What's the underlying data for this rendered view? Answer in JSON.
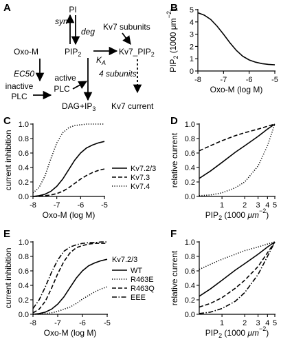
{
  "panel_labels": {
    "A": "A",
    "B": "B",
    "C": "C",
    "D": "D",
    "E": "E",
    "F": "F"
  },
  "diagram": {
    "pi": "PI",
    "syn": "syn",
    "deg": "deg",
    "pip2": "PIP",
    "pip2_sub": "2",
    "oxo_m": "Oxo-M",
    "ec50": "EC50",
    "inactive_1": "inactive",
    "inactive_2": "PLC",
    "active_1": "active",
    "active_2": "PLC",
    "dag_ip3": "DAG+IP",
    "dag_ip3_sub": "3",
    "kv7_subunits": "Kv7 subunits",
    "ka": "K",
    "ka_sub": "A",
    "kv7_pip2": "Kv7_PIP",
    "kv7_pip2_sub": "2",
    "four_subunits": "4 subunits",
    "kv7_current": "Kv7 current"
  },
  "chart_data": [
    {
      "panel": "B",
      "type": "line",
      "xlabel": "Oxo-M (log M)",
      "ylabel": "PIP2 (1000 μm−2)",
      "ylabel_parts": [
        "PIP",
        "2",
        " (1000 μm",
        "−2",
        ")"
      ],
      "xlim": [
        -8,
        -5
      ],
      "ylim": [
        0,
        5
      ],
      "x_ticks": [
        -8,
        -7,
        -6,
        -5
      ],
      "x_tick_labels": [
        "-8",
        "-7",
        "-6",
        "-5"
      ],
      "y_ticks": [
        0,
        1,
        2,
        3,
        4,
        5
      ],
      "y_tick_labels": [
        "0",
        "1",
        "2",
        "3",
        "4",
        "5"
      ],
      "series": [
        {
          "style": "solid",
          "x": [
            -8,
            -7.75,
            -7.5,
            -7.25,
            -7,
            -6.75,
            -6.5,
            -6.25,
            -6,
            -5.75,
            -5.5,
            -5.25,
            -5
          ],
          "y": [
            4.75,
            4.55,
            4.2,
            3.65,
            3.0,
            2.3,
            1.68,
            1.2,
            0.9,
            0.72,
            0.6,
            0.54,
            0.5
          ]
        }
      ]
    },
    {
      "panel": "C",
      "type": "line",
      "xlabel": "Oxo-M (log M)",
      "ylabel": "current inhibition",
      "xlim": [
        -8,
        -5
      ],
      "ylim": [
        0,
        1
      ],
      "x_ticks": [
        -8,
        -7,
        -6,
        -5
      ],
      "x_tick_labels": [
        "-8",
        "-7",
        "-6",
        "-5"
      ],
      "y_ticks": [
        0,
        0.2,
        0.4,
        0.6,
        0.8,
        1.0
      ],
      "y_tick_labels": [
        "0.0",
        "0.2",
        "0.4",
        "0.6",
        "0.8",
        "1.0"
      ],
      "series": [
        {
          "name": "Kv7.2/3",
          "style": "solid",
          "x": [
            -8,
            -7.75,
            -7.5,
            -7.25,
            -7,
            -6.75,
            -6.5,
            -6.25,
            -6,
            -5.75,
            -5.5,
            -5.25,
            -5
          ],
          "y": [
            0.0,
            0.01,
            0.03,
            0.07,
            0.14,
            0.24,
            0.37,
            0.5,
            0.6,
            0.67,
            0.71,
            0.74,
            0.76
          ]
        },
        {
          "name": "Kv7.3",
          "style": "dashed",
          "x": [
            -8,
            -7.75,
            -7.5,
            -7.25,
            -7,
            -6.75,
            -6.5,
            -6.25,
            -6,
            -5.75,
            -5.5,
            -5.25,
            -5
          ],
          "y": [
            0.0,
            0.0,
            0.01,
            0.02,
            0.04,
            0.07,
            0.12,
            0.18,
            0.24,
            0.29,
            0.33,
            0.36,
            0.38
          ]
        },
        {
          "name": "Kv7.4",
          "style": "dotted",
          "x": [
            -8,
            -7.75,
            -7.5,
            -7.25,
            -7,
            -6.75,
            -6.5,
            -6.25,
            -6,
            -5.75,
            -5.5,
            -5.25,
            -5
          ],
          "y": [
            0.05,
            0.12,
            0.28,
            0.52,
            0.74,
            0.88,
            0.95,
            0.98,
            0.99,
            1.0,
            1.0,
            1.0,
            1.0
          ]
        }
      ]
    },
    {
      "panel": "D",
      "type": "line",
      "xlabel": "PIP2 (1000 μm−2)",
      "xlabel_parts": [
        "PIP",
        "2",
        " (1000 ",
        "μm",
        "−2",
        ")"
      ],
      "ylabel": "relative current",
      "xscale": "log",
      "xlim": [
        0.5,
        5
      ],
      "ylim": [
        0,
        1
      ],
      "x_ticks": [
        1,
        2,
        3,
        4,
        5
      ],
      "x_tick_labels": [
        "1",
        "2",
        "3",
        "4",
        "5"
      ],
      "y_ticks": [
        0,
        0.2,
        0.4,
        0.6,
        0.8,
        1.0
      ],
      "y_tick_labels": [
        "0.0",
        "0.2",
        "0.4",
        "0.6",
        "0.8",
        "1.0"
      ],
      "series": [
        {
          "name": "Kv7.2/3",
          "style": "solid",
          "x": [
            0.5,
            0.7,
            1,
            1.5,
            2,
            3,
            4,
            5
          ],
          "y": [
            0.25,
            0.35,
            0.47,
            0.61,
            0.7,
            0.83,
            0.93,
            1.0
          ]
        },
        {
          "name": "Kv7.3",
          "style": "dashed",
          "x": [
            0.5,
            0.7,
            1,
            1.5,
            2,
            3,
            4,
            5
          ],
          "y": [
            0.63,
            0.7,
            0.77,
            0.84,
            0.88,
            0.93,
            0.97,
            1.0
          ]
        },
        {
          "name": "Kv7.4",
          "style": "dotted",
          "x": [
            0.5,
            0.7,
            1,
            1.5,
            2,
            3,
            4,
            5
          ],
          "y": [
            0.01,
            0.02,
            0.05,
            0.12,
            0.2,
            0.42,
            0.7,
            1.0
          ]
        }
      ]
    },
    {
      "panel": "E",
      "type": "line",
      "xlabel": "Oxo-M (log M)",
      "ylabel": "current inhibition",
      "xlim": [
        -8,
        -5
      ],
      "ylim": [
        0,
        1
      ],
      "x_ticks": [
        -8,
        -7,
        -6,
        -5
      ],
      "x_tick_labels": [
        "-8",
        "-7",
        "-6",
        "-5"
      ],
      "y_ticks": [
        0,
        0.2,
        0.4,
        0.6,
        0.8,
        1.0
      ],
      "y_tick_labels": [
        "0.0",
        "0.2",
        "0.4",
        "0.6",
        "0.8",
        "1.0"
      ],
      "legend_title": "Kv7.2/3",
      "series": [
        {
          "name": "WT",
          "style": "solid",
          "x": [
            -8,
            -7.75,
            -7.5,
            -7.25,
            -7,
            -6.75,
            -6.5,
            -6.25,
            -6,
            -5.75,
            -5.5,
            -5.25,
            -5
          ],
          "y": [
            0.0,
            0.01,
            0.03,
            0.07,
            0.14,
            0.24,
            0.37,
            0.5,
            0.6,
            0.67,
            0.71,
            0.74,
            0.76
          ]
        },
        {
          "name": "R463E",
          "style": "dotted",
          "x": [
            -8,
            -7.75,
            -7.5,
            -7.25,
            -7,
            -6.75,
            -6.5,
            -6.25,
            -6,
            -5.75,
            -5.5,
            -5.25,
            -5
          ],
          "y": [
            0.0,
            0.0,
            0.01,
            0.02,
            0.04,
            0.07,
            0.1,
            0.15,
            0.21,
            0.26,
            0.31,
            0.35,
            0.38
          ]
        },
        {
          "name": "R463Q",
          "style": "dashed",
          "x": [
            -8,
            -7.75,
            -7.5,
            -7.25,
            -7,
            -6.75,
            -6.5,
            -6.25,
            -6,
            -5.75,
            -5.5,
            -5.25,
            -5
          ],
          "y": [
            0.02,
            0.07,
            0.18,
            0.36,
            0.56,
            0.73,
            0.85,
            0.92,
            0.95,
            0.97,
            0.98,
            0.98,
            0.98
          ]
        },
        {
          "name": "EEE",
          "style": "dashdot",
          "x": [
            -8,
            -7.75,
            -7.5,
            -7.25,
            -7,
            -6.75,
            -6.5,
            -6.25,
            -6,
            -5.75,
            -5.5,
            -5.25,
            -5
          ],
          "y": [
            0.08,
            0.2,
            0.38,
            0.58,
            0.75,
            0.87,
            0.93,
            0.96,
            0.98,
            0.99,
            0.99,
            1.0,
            1.0
          ]
        }
      ]
    },
    {
      "panel": "F",
      "type": "line",
      "xlabel": "PIP2 (1000 μm−2)",
      "xlabel_parts": [
        "PIP",
        "2",
        " (1000 ",
        "μm",
        "−2",
        ")"
      ],
      "ylabel": "relative current",
      "xscale": "log",
      "xlim": [
        0.5,
        5
      ],
      "ylim": [
        0,
        1
      ],
      "x_ticks": [
        1,
        2,
        3,
        4,
        5
      ],
      "x_tick_labels": [
        "1",
        "2",
        "3",
        "4",
        "5"
      ],
      "y_ticks": [
        0,
        0.2,
        0.4,
        0.6,
        0.8,
        1.0
      ],
      "y_tick_labels": [
        "0.0",
        "0.2",
        "0.4",
        "0.6",
        "0.8",
        "1.0"
      ],
      "series": [
        {
          "name": "WT",
          "style": "solid",
          "x": [
            0.5,
            0.7,
            1,
            1.5,
            2,
            3,
            4,
            5
          ],
          "y": [
            0.25,
            0.35,
            0.47,
            0.61,
            0.7,
            0.83,
            0.93,
            1.0
          ]
        },
        {
          "name": "R463E",
          "style": "dotted",
          "x": [
            0.5,
            0.7,
            1,
            1.5,
            2,
            3,
            4,
            5
          ],
          "y": [
            0.62,
            0.69,
            0.76,
            0.83,
            0.88,
            0.93,
            0.97,
            1.0
          ]
        },
        {
          "name": "R463Q",
          "style": "dashed",
          "x": [
            0.5,
            0.7,
            1,
            1.5,
            2,
            3,
            4,
            5
          ],
          "y": [
            0.1,
            0.15,
            0.23,
            0.36,
            0.47,
            0.66,
            0.85,
            1.0
          ]
        },
        {
          "name": "EEE",
          "style": "dashdot",
          "x": [
            0.5,
            0.7,
            1,
            1.5,
            2,
            3,
            4,
            5
          ],
          "y": [
            0.01,
            0.03,
            0.08,
            0.18,
            0.3,
            0.55,
            0.8,
            1.0
          ]
        }
      ]
    }
  ]
}
